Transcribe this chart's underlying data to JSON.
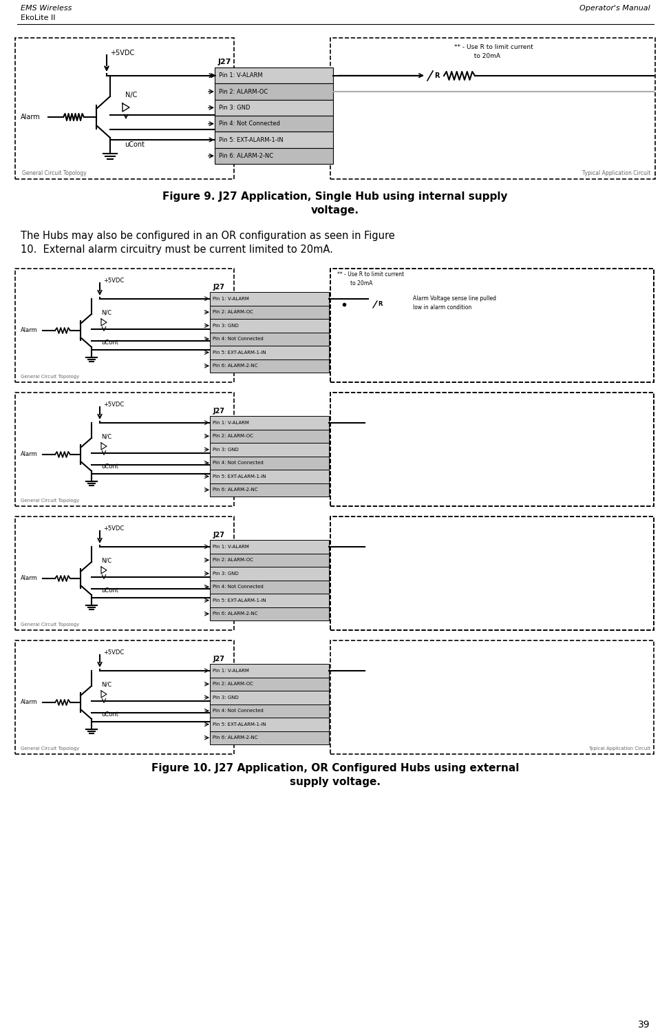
{
  "header_left": [
    "EMS Wireless",
    "EkoLite II"
  ],
  "header_right": "Operator's Manual",
  "page_number": "39",
  "figure9_caption": "Figure 9. J27 Application, Single Hub using internal supply\nvoltage.",
  "figure10_caption": "Figure 10. J27 Application, OR Configured Hubs using external\nsupply voltage.",
  "body_text": "The Hubs may also be configured in an OR configuration as seen in Figure\n10.  External alarm circuitry must be current limited to 20mA.",
  "pin_labels": [
    "Pin 1: V-ALARM",
    "Pin 2: ALARM-OC",
    "Pin 3: GND",
    "Pin 4: Not Connected",
    "Pin 5: EXT-ALARM-1-IN",
    "Pin 6: ALARM-2-NC"
  ],
  "left_box_label1": "General Circuit Topology",
  "right_box_label1": "Typical Application Circuit",
  "connector_label": "J27",
  "vdc_label": "+5VDC",
  "alarm_label": "Alarm",
  "nc_label": "N/C",
  "ucont_label": "uCont",
  "resistor_note": "** - Use R to limit current\nto 20mA",
  "r_label": "R",
  "alarm_voltage_note": "Alarm Voltage sense line pulled\nlow in alarm condition",
  "background": "#ffffff",
  "box_color": "#000000",
  "line_color": "#000000",
  "pin_box_fill": "#d3d3d3",
  "connector_fill": "#d3d3d3"
}
